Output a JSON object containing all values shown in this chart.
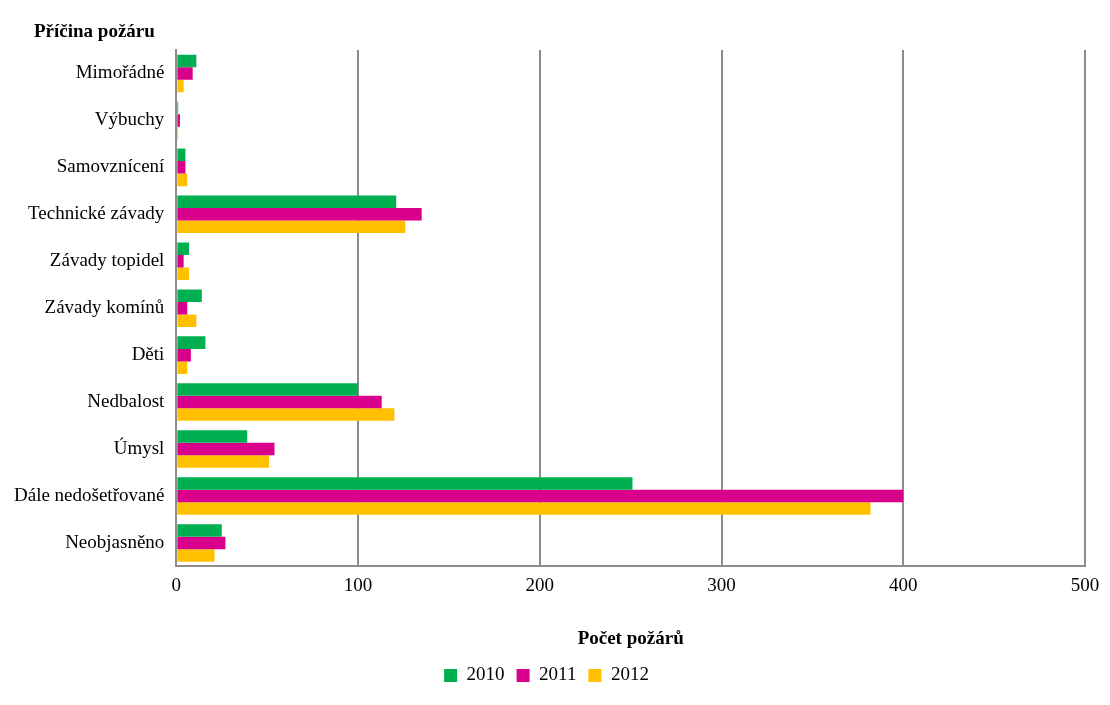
{
  "chart_data": {
    "type": "bar",
    "orientation": "horizontal",
    "ylabel": "Příčina požáru",
    "xlabel": "Počet požárů",
    "categories": [
      "Mimořádné",
      "Výbuchy",
      "Samovznícení",
      "Technické závady",
      "Závady topidel",
      "Závady komínů",
      "Děti",
      "Nedbalost",
      "Úmysl",
      "Dále nedošetřované",
      "Neobjasněno"
    ],
    "series": [
      {
        "name": "2010",
        "color": "#00b050",
        "values": [
          11,
          1,
          5,
          121,
          7,
          14,
          16,
          100,
          39,
          251,
          25
        ]
      },
      {
        "name": "2011",
        "color": "#d9008c",
        "values": [
          9,
          2,
          5,
          135,
          4,
          6,
          8,
          113,
          54,
          400,
          27
        ]
      },
      {
        "name": "2012",
        "color": "#ffc000",
        "values": [
          4,
          1,
          6,
          126,
          7,
          11,
          6,
          120,
          51,
          382,
          21
        ]
      }
    ],
    "xlim": [
      0,
      500
    ],
    "xticks": [
      0,
      100,
      200,
      300,
      400,
      500
    ],
    "grid": "x",
    "legend": "bottom"
  }
}
